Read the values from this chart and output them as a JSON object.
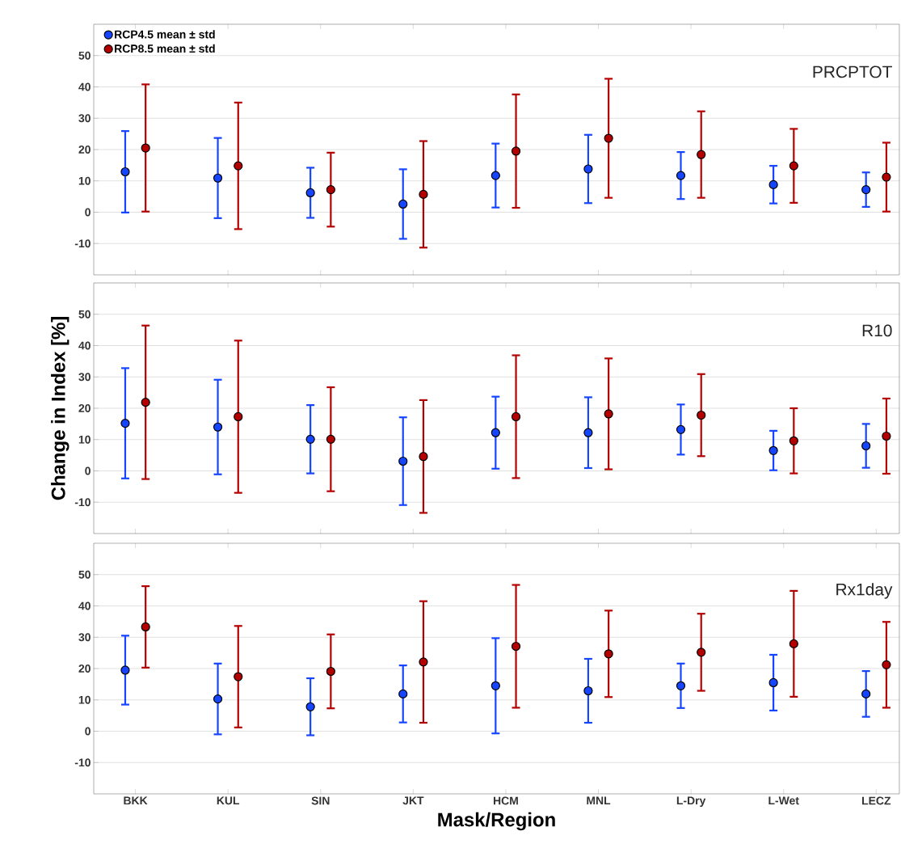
{
  "chart_data": [
    {
      "type": "scatter",
      "categories": [
        null,
        null,
        null,
        null,
        null,
        null,
        null,
        null,
        null
      ],
      "ylim": [
        -20,
        60
      ],
      "yticks": [
        -10,
        0,
        10,
        20,
        30,
        40,
        50
      ],
      "grid": "y",
      "legend": "top left",
      "marker": "circle",
      "tick_labels": "y",
      "annotations": [
        "PRCPTOT"
      ],
      "series": [
        {
          "name": "RCP4.5 mean ± std",
          "color": "#1545ff",
          "values": [
            12.9,
            10.9,
            6.2,
            2.6,
            11.7,
            13.8,
            11.7,
            8.8,
            7.2
          ],
          "errors": [
            13,
            12.8,
            8,
            11.1,
            10.2,
            10.9,
            7.5,
            6,
            5.5
          ]
        },
        {
          "name": "RCP8.5 mean ± std",
          "color": "#b30000",
          "values": [
            20.5,
            14.8,
            7.2,
            5.7,
            19.5,
            23.6,
            18.4,
            14.8,
            11.2
          ],
          "errors": [
            20.3,
            20.2,
            11.8,
            17,
            18.1,
            19,
            13.8,
            11.8,
            11
          ]
        }
      ]
    },
    {
      "type": "scatter",
      "categories": [
        null,
        null,
        null,
        null,
        null,
        null,
        null,
        null,
        null
      ],
      "ylim": [
        -20,
        60
      ],
      "yticks": [
        -10,
        0,
        10,
        20,
        30,
        40,
        50
      ],
      "grid": "y",
      "marker": "circle",
      "tick_labels": "y",
      "ylabel": "Change in Index [%]",
      "annotations": [
        "R10"
      ],
      "series": [
        {
          "color": "#1545ff",
          "values": [
            15.2,
            14,
            10.1,
            3.1,
            12.2,
            12.2,
            13.2,
            6.5,
            8
          ],
          "errors": [
            17.6,
            15.1,
            10.9,
            14,
            11.5,
            11.3,
            8,
            6.3,
            7
          ]
        },
        {
          "color": "#b30000",
          "values": [
            21.9,
            17.3,
            10.1,
            4.6,
            17.3,
            18.2,
            17.8,
            9.6,
            11.1
          ],
          "errors": [
            24.5,
            24.3,
            16.6,
            18,
            19.6,
            17.7,
            13.1,
            10.4,
            12
          ]
        }
      ]
    },
    {
      "type": "scatter",
      "categories": [
        "BKK",
        "KUL",
        "SIN",
        "JKT",
        "HCM",
        "MNL",
        "L-Dry",
        "L-Wet",
        "LECZ"
      ],
      "ylim": [
        -20,
        60
      ],
      "yticks": [
        -10,
        0,
        10,
        20,
        30,
        40,
        50
      ],
      "grid": "y",
      "marker": "circle",
      "xlabel": "Mask/Region",
      "annotations": [
        "Rx1day"
      ],
      "series": [
        {
          "color": "#1545ff",
          "values": [
            19.5,
            10.3,
            7.8,
            11.9,
            14.5,
            12.9,
            14.5,
            15.5,
            11.9
          ],
          "errors": [
            11,
            11.3,
            9.1,
            9.1,
            15.2,
            10.2,
            7.1,
            8.9,
            7.3
          ]
        },
        {
          "color": "#b30000",
          "values": [
            33.3,
            17.4,
            19.1,
            22.1,
            27.1,
            24.7,
            25.2,
            27.9,
            21.2
          ],
          "errors": [
            13,
            16.2,
            11.8,
            19.4,
            19.6,
            13.8,
            12.3,
            16.9,
            13.7
          ]
        }
      ]
    }
  ]
}
